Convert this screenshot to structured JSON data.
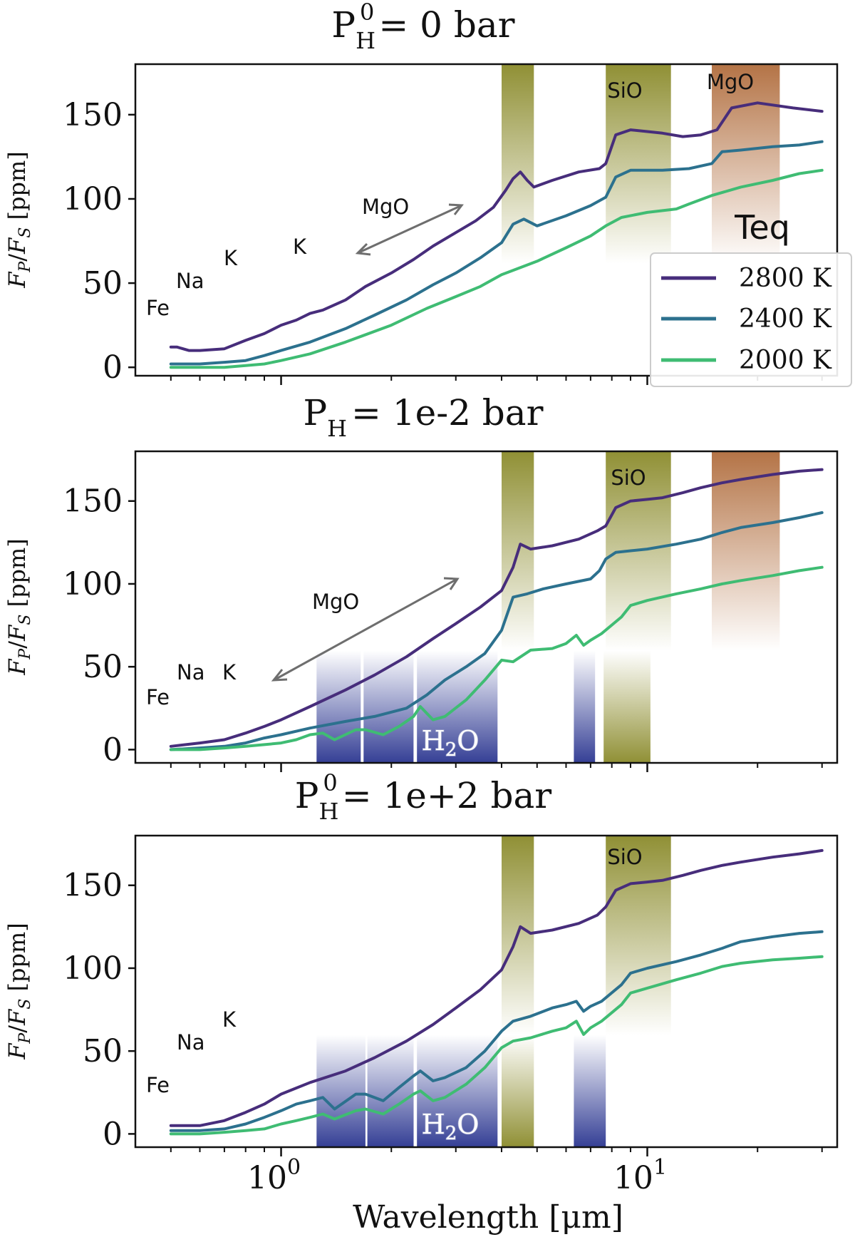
{
  "chart_data": [
    {
      "type": "line",
      "title": "P_H^0 = 0 bar",
      "title_base": "P",
      "title_sub": "H",
      "title_sup": "0",
      "title_rest": "=  0 bar",
      "ylabel": "F_P/F_S [ppm]",
      "ylim": [
        -5,
        180
      ],
      "xlim": [
        0.4,
        33
      ],
      "xscale": "log",
      "yticks": [
        0,
        50,
        100,
        150
      ],
      "show_x_ticklabels": false,
      "annotations": [
        "Fe",
        "Na",
        "K",
        "K",
        "MgO"
      ],
      "bands": [
        {
          "label": "",
          "color": "#8a8a2a",
          "x0": 4.0,
          "x1": 4.9
        },
        {
          "label": "SiO",
          "color": "#8a8a2a",
          "x0": 7.7,
          "x1": 11.6
        },
        {
          "label": "MgO",
          "color": "#b06c3c",
          "x0": 15.0,
          "x1": 23.0
        }
      ],
      "legend": {
        "title": "Teq",
        "placement": "right",
        "entries": [
          "2800 K",
          "2400 K",
          "2000 K"
        ]
      },
      "series": [
        {
          "name": "2800 K",
          "color": "#472d7b",
          "x": [
            0.5,
            0.52,
            0.56,
            0.6,
            0.7,
            0.8,
            0.9,
            1.0,
            1.1,
            1.2,
            1.3,
            1.5,
            1.7,
            2.0,
            2.3,
            2.6,
            3.0,
            3.4,
            3.8,
            4.1,
            4.3,
            4.5,
            4.7,
            4.9,
            5.5,
            6.5,
            7.4,
            7.7,
            8.2,
            9.0,
            10.0,
            11.0,
            12.5,
            14.0,
            15.5,
            17.0,
            20.0,
            25.0,
            30.0
          ],
          "y": [
            12,
            12,
            10,
            10,
            11,
            16,
            20,
            25,
            28,
            32,
            34,
            40,
            48,
            56,
            64,
            72,
            80,
            87,
            95,
            105,
            112,
            116,
            111,
            107,
            111,
            116,
            118,
            121,
            138,
            141,
            140,
            139,
            137,
            138,
            141,
            154,
            157,
            154,
            152
          ]
        },
        {
          "name": "2400 K",
          "color": "#2c718e",
          "x": [
            0.5,
            0.6,
            0.7,
            0.8,
            0.9,
            1.0,
            1.2,
            1.5,
            1.8,
            2.2,
            2.6,
            3.0,
            3.5,
            4.0,
            4.3,
            4.6,
            5.0,
            6.0,
            7.0,
            7.7,
            8.2,
            9.0,
            10.0,
            11.0,
            13.0,
            15.0,
            16.0,
            18.0,
            22.0,
            26.0,
            30.0
          ],
          "y": [
            2,
            2,
            3,
            4,
            7,
            10,
            15,
            23,
            31,
            40,
            49,
            56,
            65,
            74,
            85,
            88,
            84,
            90,
            96,
            101,
            113,
            117,
            117,
            117,
            118,
            121,
            128,
            129,
            131,
            132,
            134
          ]
        },
        {
          "name": "2000 K",
          "color": "#3fbc73",
          "x": [
            0.5,
            0.6,
            0.7,
            0.8,
            0.9,
            1.0,
            1.2,
            1.5,
            2.0,
            2.5,
            3.0,
            3.5,
            4.0,
            5.0,
            6.0,
            7.0,
            7.7,
            8.5,
            10.0,
            12.0,
            13.0,
            15.0,
            18.0,
            22.0,
            26.0,
            30.0
          ],
          "y": [
            0,
            0,
            0,
            1,
            2,
            4,
            8,
            15,
            25,
            35,
            42,
            48,
            55,
            63,
            71,
            78,
            84,
            89,
            92,
            94,
            97,
            102,
            107,
            111,
            115,
            117
          ]
        }
      ]
    },
    {
      "type": "line",
      "title": "P_H = 1e-2 bar",
      "title_base": "P",
      "title_sub": "H",
      "title_sup": "",
      "title_rest": "=  1e-2 bar",
      "ylabel": "F_P/F_S [ppm]",
      "ylim": [
        -8,
        180
      ],
      "xlim": [
        0.4,
        33
      ],
      "xscale": "log",
      "yticks": [
        0,
        50,
        100,
        150
      ],
      "show_x_ticklabels": false,
      "annotations": [
        "Fe",
        "Na",
        "K",
        "MgO"
      ],
      "bands": [
        {
          "label": "",
          "color": "#8a8a2a",
          "x0": 4.0,
          "x1": 4.9
        },
        {
          "label": "SiO",
          "color": "#8a8a2a",
          "x0": 7.7,
          "x1": 11.6
        },
        {
          "label": "",
          "color": "#b06c3c",
          "x0": 15.0,
          "x1": 23.0
        },
        {
          "label": "",
          "color": "#8a8a2a",
          "x0": 7.6,
          "x1": 10.2,
          "from_bottom": true
        },
        {
          "label": "",
          "color": "#2a3590",
          "x0": 1.25,
          "x1": 1.65,
          "from_bottom": true
        },
        {
          "label": "",
          "color": "#2a3590",
          "x0": 1.68,
          "x1": 2.3,
          "from_bottom": true
        },
        {
          "label": "H2O",
          "color": "#2a3590",
          "x0": 2.35,
          "x1": 3.9,
          "from_bottom": true
        },
        {
          "label": "",
          "color": "#2a3590",
          "x0": 6.3,
          "x1": 7.2,
          "from_bottom": true
        }
      ],
      "series": [
        {
          "name": "2800 K",
          "color": "#472d7b",
          "x": [
            0.5,
            0.6,
            0.7,
            0.8,
            0.9,
            1.0,
            1.2,
            1.5,
            1.8,
            2.2,
            2.6,
            3.0,
            3.5,
            4.0,
            4.3,
            4.5,
            4.8,
            5.5,
            6.5,
            7.3,
            7.7,
            8.2,
            9.0,
            10.0,
            11.0,
            12.5,
            14.0,
            16.0,
            18.0,
            22.0,
            26.0,
            30.0
          ],
          "y": [
            2,
            4,
            6,
            10,
            14,
            18,
            26,
            36,
            45,
            56,
            67,
            76,
            86,
            96,
            110,
            124,
            121,
            123,
            127,
            132,
            135,
            146,
            150,
            151,
            152,
            155,
            158,
            161,
            163,
            166,
            168,
            169
          ]
        },
        {
          "name": "2400 K",
          "color": "#2c718e",
          "x": [
            0.5,
            0.6,
            0.7,
            0.8,
            0.9,
            1.0,
            1.2,
            1.5,
            1.8,
            2.2,
            2.5,
            2.8,
            3.2,
            3.6,
            4.0,
            4.3,
            4.7,
            5.2,
            6.0,
            7.0,
            7.4,
            7.7,
            8.2,
            9.0,
            10.0,
            12.0,
            14.0,
            16.0,
            18.0,
            22.0,
            26.0,
            30.0
          ],
          "y": [
            0,
            1,
            2,
            4,
            7,
            9,
            13,
            17,
            20,
            25,
            33,
            42,
            50,
            58,
            72,
            92,
            94,
            97,
            100,
            103,
            108,
            115,
            119,
            120,
            121,
            124,
            127,
            131,
            134,
            137,
            140,
            143
          ]
        },
        {
          "name": "2000 K",
          "color": "#3fbc73",
          "x": [
            0.5,
            0.6,
            0.7,
            0.8,
            0.9,
            1.0,
            1.1,
            1.2,
            1.3,
            1.4,
            1.6,
            1.7,
            1.9,
            2.1,
            2.3,
            2.4,
            2.6,
            2.8,
            3.2,
            3.6,
            4.0,
            4.3,
            4.8,
            5.5,
            6.0,
            6.4,
            6.7,
            7.0,
            7.5,
            8.5,
            9.0,
            10.0,
            12.0,
            14.0,
            16.0,
            18.0,
            22.0,
            26.0,
            30.0
          ],
          "y": [
            0,
            0,
            1,
            2,
            3,
            4,
            6,
            9,
            10,
            6,
            12,
            12,
            9,
            14,
            20,
            26,
            18,
            20,
            30,
            42,
            54,
            53,
            60,
            61,
            64,
            69,
            63,
            66,
            70,
            80,
            87,
            90,
            94,
            97,
            100,
            102,
            105,
            108,
            110
          ]
        }
      ]
    },
    {
      "type": "line",
      "title": "P_H^0 = 1e+2 bar",
      "title_base": "P",
      "title_sub": "H",
      "title_sup": "0",
      "title_rest": "=  1e+2 bar",
      "ylabel": "F_P/F_S [ppm]",
      "xlabel": "Wavelength [μm]",
      "ylim": [
        -8,
        180
      ],
      "xlim": [
        0.4,
        33
      ],
      "xscale": "log",
      "yticks": [
        0,
        50,
        100,
        150
      ],
      "xticks": [
        {
          "value": 1,
          "base": "10",
          "exp": "0"
        },
        {
          "value": 10,
          "base": "10",
          "exp": "1"
        }
      ],
      "annotations": [
        "Fe",
        "Na",
        "K"
      ],
      "bands": [
        {
          "label": "",
          "color": "#8a8a2a",
          "x0": 4.0,
          "x1": 4.9
        },
        {
          "label": "SiO",
          "color": "#8a8a2a",
          "x0": 7.7,
          "x1": 11.6
        },
        {
          "label": "",
          "color": "#8a8a2a",
          "x0": 4.0,
          "x1": 4.9,
          "from_bottom": true
        },
        {
          "label": "",
          "color": "#2a3590",
          "x0": 1.25,
          "x1": 1.7,
          "from_bottom": true
        },
        {
          "label": "",
          "color": "#2a3590",
          "x0": 1.72,
          "x1": 2.3,
          "from_bottom": true
        },
        {
          "label": "H2O",
          "color": "#2a3590",
          "x0": 2.35,
          "x1": 3.9,
          "from_bottom": true
        },
        {
          "label": "",
          "color": "#2a3590",
          "x0": 6.3,
          "x1": 7.7,
          "from_bottom": true
        }
      ],
      "series": [
        {
          "name": "2800 K",
          "color": "#472d7b",
          "x": [
            0.5,
            0.6,
            0.7,
            0.8,
            0.9,
            1.0,
            1.2,
            1.5,
            1.8,
            2.2,
            2.6,
            3.0,
            3.5,
            4.0,
            4.3,
            4.5,
            4.8,
            5.5,
            6.5,
            7.3,
            7.7,
            8.2,
            9.0,
            10.0,
            11.0,
            12.5,
            14.0,
            16.0,
            18.0,
            22.0,
            26.0,
            30.0
          ],
          "y": [
            5,
            5,
            8,
            13,
            18,
            24,
            31,
            38,
            46,
            56,
            66,
            76,
            87,
            99,
            113,
            125,
            121,
            123,
            127,
            132,
            137,
            147,
            151,
            152,
            153,
            156,
            159,
            162,
            164,
            167,
            169,
            171
          ]
        },
        {
          "name": "2400 K",
          "color": "#2c718e",
          "x": [
            0.5,
            0.6,
            0.7,
            0.8,
            0.9,
            1.0,
            1.1,
            1.2,
            1.3,
            1.4,
            1.6,
            1.7,
            1.9,
            2.1,
            2.3,
            2.4,
            2.6,
            2.8,
            3.2,
            3.6,
            4.0,
            4.3,
            4.8,
            5.5,
            6.0,
            6.4,
            6.7,
            7.0,
            7.5,
            8.5,
            9.0,
            10.0,
            12.0,
            14.0,
            16.0,
            18.0,
            22.0,
            26.0,
            30.0
          ],
          "y": [
            2,
            2,
            3,
            6,
            10,
            14,
            18,
            20,
            22,
            15,
            24,
            24,
            20,
            28,
            35,
            38,
            32,
            34,
            40,
            50,
            62,
            68,
            71,
            76,
            78,
            80,
            74,
            77,
            80,
            90,
            97,
            100,
            104,
            108,
            112,
            116,
            119,
            121,
            122
          ]
        },
        {
          "name": "2000 K",
          "color": "#3fbc73",
          "x": [
            0.5,
            0.6,
            0.7,
            0.8,
            0.9,
            1.0,
            1.1,
            1.2,
            1.3,
            1.4,
            1.6,
            1.7,
            1.9,
            2.1,
            2.3,
            2.4,
            2.6,
            2.8,
            3.2,
            3.6,
            4.0,
            4.3,
            4.8,
            5.5,
            6.0,
            6.4,
            6.7,
            7.0,
            7.5,
            8.5,
            9.0,
            10.0,
            12.0,
            14.0,
            16.0,
            18.0,
            22.0,
            26.0,
            30.0
          ],
          "y": [
            0,
            0,
            1,
            2,
            3,
            6,
            8,
            10,
            12,
            9,
            14,
            15,
            12,
            18,
            24,
            26,
            20,
            22,
            30,
            40,
            52,
            56,
            58,
            62,
            64,
            68,
            60,
            64,
            68,
            78,
            85,
            88,
            93,
            97,
            101,
            103,
            105,
            106,
            107
          ]
        }
      ]
    }
  ]
}
